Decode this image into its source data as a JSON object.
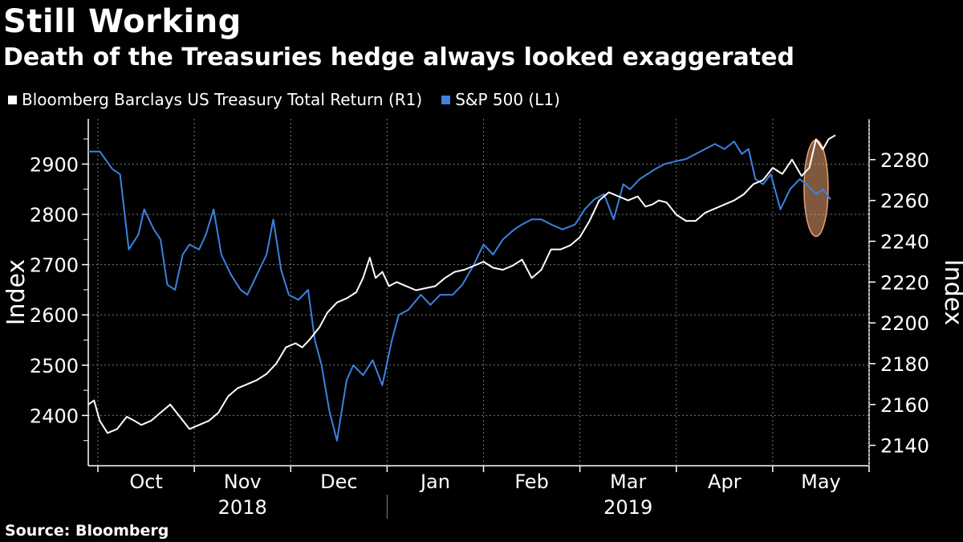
{
  "header": {
    "title": "Still Working",
    "subtitle": "Death of the Treasuries hedge always looked exaggerated"
  },
  "legend": {
    "items": [
      {
        "label": "Bloomberg Barclays US Treasury Total Return (R1)",
        "color": "#ffffff"
      },
      {
        "label": "S&P 500  (L1)",
        "color": "#3b82e0"
      }
    ]
  },
  "footer": {
    "source": "Source: Bloomberg"
  },
  "chart_data": {
    "type": "line",
    "title": "Still Working",
    "ylabel_left": "Index",
    "ylabel_right": "Index",
    "left_axis": {
      "min": 2300,
      "max": 2990,
      "ticks": [
        2400,
        2500,
        2600,
        2700,
        2800,
        2900
      ]
    },
    "right_axis": {
      "min": 2130,
      "max": 2300,
      "ticks": [
        2140,
        2160,
        2180,
        2200,
        2220,
        2240,
        2260,
        2280
      ]
    },
    "x_range": [
      0,
      8.1
    ],
    "month_labels": [
      {
        "label": "Oct",
        "x": 0.5
      },
      {
        "label": "Nov",
        "x": 1.5
      },
      {
        "label": "Dec",
        "x": 2.5
      },
      {
        "label": "Jan",
        "x": 3.5
      },
      {
        "label": "Feb",
        "x": 4.5
      },
      {
        "label": "Mar",
        "x": 5.5
      },
      {
        "label": "Apr",
        "x": 6.5
      },
      {
        "label": "May",
        "x": 7.5
      }
    ],
    "year_labels": [
      {
        "label": "2018",
        "x": 1.5
      },
      {
        "label": "2019",
        "x": 5.5
      }
    ],
    "year_divider_x": 3.1,
    "series": [
      {
        "name": "S&P 500  (L1)",
        "axis": "left",
        "color": "#3b82e0",
        "x": [
          0.0,
          0.12,
          0.25,
          0.33,
          0.42,
          0.52,
          0.58,
          0.68,
          0.75,
          0.82,
          0.9,
          0.98,
          1.05,
          1.15,
          1.22,
          1.3,
          1.38,
          1.48,
          1.58,
          1.65,
          1.75,
          1.85,
          1.92,
          2.0,
          2.08,
          2.18,
          2.28,
          2.35,
          2.42,
          2.5,
          2.58,
          2.68,
          2.75,
          2.85,
          2.95,
          3.05,
          3.15,
          3.22,
          3.32,
          3.45,
          3.55,
          3.65,
          3.78,
          3.88,
          4.0,
          4.1,
          4.2,
          4.3,
          4.42,
          4.5,
          4.6,
          4.7,
          4.8,
          4.92,
          5.05,
          5.15,
          5.25,
          5.35,
          5.45,
          5.55,
          5.62,
          5.72,
          5.8,
          5.88,
          5.98,
          6.08,
          6.2,
          6.3,
          6.4,
          6.5,
          6.6,
          6.7,
          6.78,
          6.85,
          6.92,
          7.0,
          7.08,
          7.18,
          7.28,
          7.38,
          7.45,
          7.55,
          7.62,
          7.7
        ],
        "values": [
          2925,
          2925,
          2890,
          2880,
          2730,
          2760,
          2810,
          2770,
          2750,
          2660,
          2650,
          2720,
          2740,
          2730,
          2760,
          2810,
          2720,
          2680,
          2650,
          2640,
          2680,
          2720,
          2790,
          2690,
          2640,
          2630,
          2650,
          2550,
          2500,
          2410,
          2350,
          2470,
          2500,
          2480,
          2510,
          2460,
          2550,
          2600,
          2610,
          2640,
          2620,
          2640,
          2640,
          2660,
          2700,
          2740,
          2720,
          2750,
          2770,
          2780,
          2790,
          2790,
          2780,
          2770,
          2780,
          2810,
          2830,
          2840,
          2790,
          2860,
          2850,
          2870,
          2880,
          2890,
          2900,
          2905,
          2910,
          2920,
          2930,
          2940,
          2930,
          2945,
          2920,
          2930,
          2870,
          2860,
          2880,
          2810,
          2850,
          2870,
          2860,
          2840,
          2850,
          2830
        ]
      },
      {
        "name": "Bloomberg Barclays US Treasury Total Return (R1)",
        "axis": "right",
        "color": "#ffffff",
        "x": [
          0.0,
          0.06,
          0.12,
          0.2,
          0.3,
          0.4,
          0.48,
          0.55,
          0.65,
          0.75,
          0.85,
          0.95,
          1.05,
          1.15,
          1.25,
          1.35,
          1.45,
          1.55,
          1.65,
          1.75,
          1.85,
          1.95,
          2.05,
          2.15,
          2.22,
          2.3,
          2.4,
          2.48,
          2.58,
          2.68,
          2.78,
          2.85,
          2.92,
          2.98,
          3.05,
          3.12,
          3.2,
          3.3,
          3.4,
          3.5,
          3.6,
          3.7,
          3.8,
          3.9,
          4.0,
          4.1,
          4.2,
          4.3,
          4.4,
          4.5,
          4.6,
          4.7,
          4.8,
          4.9,
          5.0,
          5.1,
          5.2,
          5.3,
          5.4,
          5.5,
          5.6,
          5.7,
          5.78,
          5.85,
          5.92,
          6.0,
          6.1,
          6.2,
          6.3,
          6.4,
          6.5,
          6.6,
          6.7,
          6.8,
          6.9,
          7.0,
          7.1,
          7.2,
          7.3,
          7.4,
          7.48,
          7.55,
          7.62,
          7.68,
          7.75
        ],
        "values": [
          2160,
          2162,
          2152,
          2146,
          2148,
          2154,
          2152,
          2150,
          2152,
          2156,
          2160,
          2154,
          2148,
          2150,
          2152,
          2156,
          2164,
          2168,
          2170,
          2172,
          2175,
          2180,
          2188,
          2190,
          2188,
          2192,
          2198,
          2205,
          2210,
          2212,
          2215,
          2222,
          2232,
          2222,
          2225,
          2218,
          2220,
          2218,
          2216,
          2217,
          2218,
          2222,
          2225,
          2226,
          2228,
          2230,
          2227,
          2226,
          2228,
          2231,
          2222,
          2226,
          2236,
          2236,
          2238,
          2242,
          2250,
          2260,
          2264,
          2262,
          2260,
          2262,
          2257,
          2258,
          2260,
          2259,
          2253,
          2250,
          2250,
          2254,
          2256,
          2258,
          2260,
          2263,
          2268,
          2270,
          2276,
          2273,
          2280,
          2272,
          2276,
          2290,
          2285,
          2290,
          2292
        ]
      }
    ],
    "highlight": {
      "shape": "ellipse",
      "x_center": 7.55,
      "color": "#e8a070"
    }
  }
}
